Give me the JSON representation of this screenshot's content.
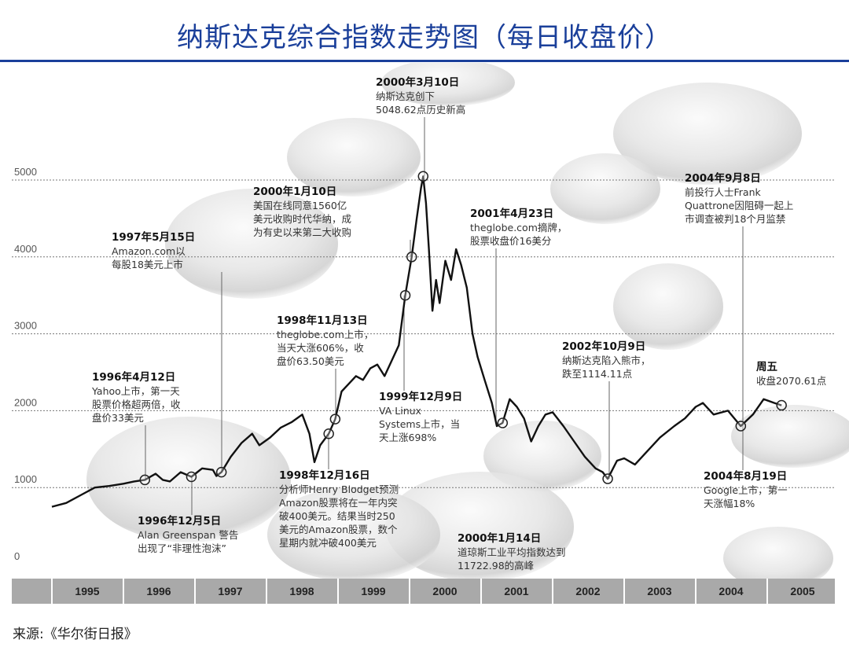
{
  "title": "纳斯达克综合指数走势图（每日收盘价）",
  "source": "来源:《华尔街日报》",
  "chart_data": {
    "type": "line",
    "title": "纳斯达克综合指数走势图（每日收盘价）",
    "xlim": [
      1995,
      2005.5
    ],
    "ylim": [
      0,
      5300
    ],
    "y_ticks": [
      "0",
      "1000",
      "2000",
      "3000",
      "4000",
      "5000"
    ],
    "y_tick_values": [
      0,
      1000,
      2000,
      3000,
      4000,
      5000
    ],
    "x_categories": [
      "1995",
      "1996",
      "1997",
      "1998",
      "1999",
      "2000",
      "2001",
      "2002",
      "2003",
      "2004",
      "2005"
    ],
    "grid": "horizontal dotted",
    "line_color": "#111111",
    "points": [
      [
        1995.0,
        750
      ],
      [
        1995.2,
        800
      ],
      [
        1995.4,
        900
      ],
      [
        1995.6,
        1000
      ],
      [
        1995.8,
        1020
      ],
      [
        1996.0,
        1050
      ],
      [
        1996.15,
        1080
      ],
      [
        1996.3,
        1100
      ],
      [
        1996.45,
        1180
      ],
      [
        1996.55,
        1100
      ],
      [
        1996.65,
        1080
      ],
      [
        1996.8,
        1200
      ],
      [
        1996.95,
        1140
      ],
      [
        1997.1,
        1250
      ],
      [
        1997.25,
        1230
      ],
      [
        1997.3,
        1150
      ],
      [
        1997.37,
        1200
      ],
      [
        1997.5,
        1400
      ],
      [
        1997.65,
        1580
      ],
      [
        1997.8,
        1700
      ],
      [
        1997.9,
        1550
      ],
      [
        1998.05,
        1650
      ],
      [
        1998.2,
        1780
      ],
      [
        1998.35,
        1850
      ],
      [
        1998.5,
        1950
      ],
      [
        1998.6,
        1700
      ],
      [
        1998.67,
        1330
      ],
      [
        1998.75,
        1550
      ],
      [
        1998.87,
        1700
      ],
      [
        1998.96,
        1890
      ],
      [
        1999.05,
        2250
      ],
      [
        1999.15,
        2350
      ],
      [
        1999.25,
        2450
      ],
      [
        1999.35,
        2400
      ],
      [
        1999.45,
        2550
      ],
      [
        1999.55,
        2600
      ],
      [
        1999.65,
        2450
      ],
      [
        1999.75,
        2650
      ],
      [
        1999.85,
        2850
      ],
      [
        1999.94,
        3500
      ],
      [
        2000.03,
        4000
      ],
      [
        2000.1,
        4500
      ],
      [
        2000.16,
        4900
      ],
      [
        2000.19,
        5048
      ],
      [
        2000.23,
        4700
      ],
      [
        2000.27,
        4100
      ],
      [
        2000.32,
        3300
      ],
      [
        2000.37,
        3700
      ],
      [
        2000.42,
        3400
      ],
      [
        2000.5,
        3950
      ],
      [
        2000.58,
        3700
      ],
      [
        2000.65,
        4100
      ],
      [
        2000.72,
        3900
      ],
      [
        2000.8,
        3600
      ],
      [
        2000.88,
        3000
      ],
      [
        2000.95,
        2700
      ],
      [
        2001.05,
        2400
      ],
      [
        2001.15,
        2100
      ],
      [
        2001.22,
        1800
      ],
      [
        2001.3,
        1840
      ],
      [
        2001.4,
        2150
      ],
      [
        2001.5,
        2050
      ],
      [
        2001.6,
        1900
      ],
      [
        2001.7,
        1600
      ],
      [
        2001.8,
        1800
      ],
      [
        2001.9,
        1950
      ],
      [
        2002.0,
        1980
      ],
      [
        2002.15,
        1800
      ],
      [
        2002.3,
        1600
      ],
      [
        2002.45,
        1400
      ],
      [
        2002.6,
        1250
      ],
      [
        2002.7,
        1200
      ],
      [
        2002.77,
        1114
      ],
      [
        2002.9,
        1350
      ],
      [
        2003.0,
        1380
      ],
      [
        2003.15,
        1300
      ],
      [
        2003.3,
        1450
      ],
      [
        2003.5,
        1650
      ],
      [
        2003.7,
        1800
      ],
      [
        2003.85,
        1900
      ],
      [
        2004.0,
        2050
      ],
      [
        2004.1,
        2100
      ],
      [
        2004.25,
        1950
      ],
      [
        2004.45,
        2000
      ],
      [
        2004.63,
        1800
      ],
      [
        2004.8,
        1950
      ],
      [
        2004.95,
        2150
      ],
      [
        2005.1,
        2100
      ],
      [
        2005.2,
        2070
      ]
    ],
    "markers": [
      1996.3,
      1996.95,
      1997.37,
      1998.87,
      1998.96,
      1999.94,
      2000.03,
      2000.19,
      2001.3,
      2002.77,
      2004.63,
      2005.2
    ],
    "annotations": [
      {
        "date": "2000年3月10日",
        "text": [
          "纳斯达克创下",
          "5048.62点历史新高"
        ]
      },
      {
        "date": "2000年1月10日",
        "text": [
          "美国在线同意1560亿",
          "美元收购时代华纳，成",
          "为有史以来第二大收购"
        ]
      },
      {
        "date": "1997年5月15日",
        "text": [
          "Amazon.com以",
          "每股18美元上市"
        ]
      },
      {
        "date": "1998年11月13日",
        "text": [
          "theglobe.com上市，",
          "当天大涨606%，收",
          "盘价63.50美元"
        ]
      },
      {
        "date": "1996年4月12日",
        "text": [
          "Yahoo上市，第一天",
          "股票价格超两倍，收",
          "盘价33美元"
        ]
      },
      {
        "date": "1999年12月9日",
        "text": [
          "VA Linux",
          "Systems上市，当",
          "天上涨698%"
        ]
      },
      {
        "date": "2001年4月23日",
        "text": [
          "theglobe.com摘牌，",
          "股票收盘价16美分"
        ]
      },
      {
        "date": "2004年9月8日",
        "text": [
          "前投行人士Frank",
          "Quattrone因阻碍一起上",
          "市调查被判18个月监禁"
        ]
      },
      {
        "date": "2002年10月9日",
        "text": [
          "纳斯达克陷入熊市，",
          "跌至1114.11点"
        ]
      },
      {
        "date": "周五",
        "text": [
          "收盘2070.61点"
        ]
      },
      {
        "date": "2004年8月19日",
        "text": [
          "Google上市，第一",
          "天涨幅18%"
        ]
      },
      {
        "date": "1996年12月5日",
        "text": [
          "Alan Greenspan 警告",
          "出现了“非理性泡沫”"
        ]
      },
      {
        "date": "1998年12月16日",
        "text": [
          "分析师Henry Blodget预测",
          "Amazon股票将在一年内突",
          "破400美元。结果当时250",
          "美元的Amazon股票，数个",
          "星期内就冲破400美元"
        ]
      },
      {
        "date": "2000年1月14日",
        "text": [
          "道琼斯工业平均指数达到",
          "11722.98的高峰"
        ]
      }
    ]
  }
}
